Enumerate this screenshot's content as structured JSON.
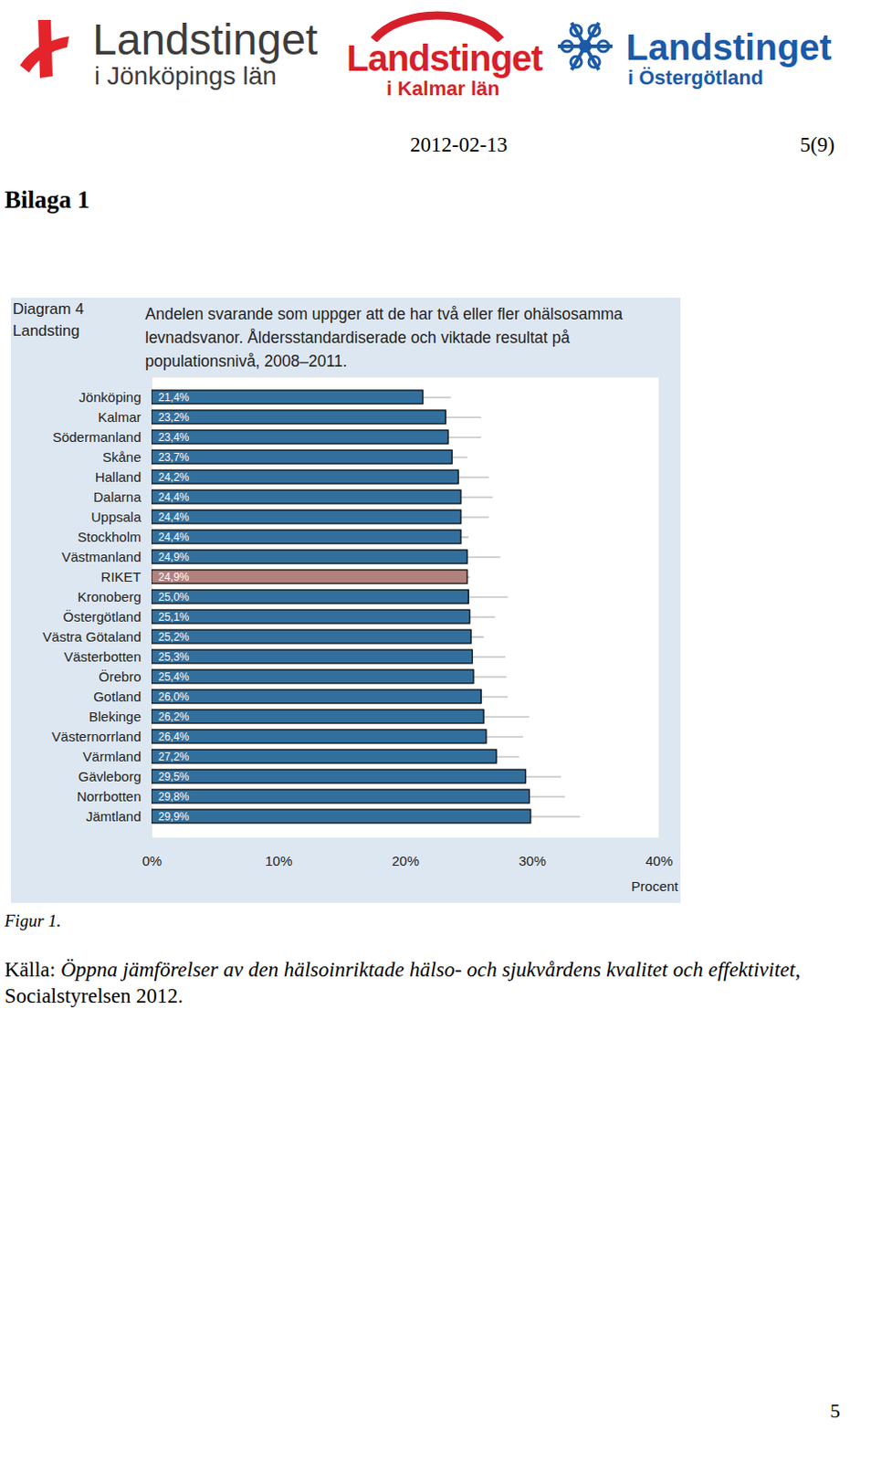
{
  "header": {
    "logos": [
      {
        "name": "Landstinget",
        "sub": "i Jönköpings län"
      },
      {
        "name": "Landstinget",
        "sub": "i Kalmar län"
      },
      {
        "name": "Landstinget",
        "sub": "i Östergötland"
      }
    ],
    "date": "2012-02-13",
    "page_ref": "5(9)"
  },
  "heading": "Bilaga 1",
  "chart_data": {
    "type": "bar",
    "orientation": "horizontal",
    "label": "Diagram 4",
    "ylabel": "Landsting",
    "title": "Andelen svarande som uppger att de har två eller fler ohälsosamma levnadsvanor. Åldersstandardiserade och viktade resultat på populationsnivå, 2008–2011.",
    "xlabel": "Procent",
    "categories": [
      "Jönköping",
      "Kalmar",
      "Södermanland",
      "Skåne",
      "Halland",
      "Dalarna",
      "Uppsala",
      "Stockholm",
      "Västmanland",
      "RIKET",
      "Kronoberg",
      "Östergötland",
      "Västra Götaland",
      "Västerbotten",
      "Örebro",
      "Gotland",
      "Blekinge",
      "Västernorrland",
      "Värmland",
      "Gävleborg",
      "Norrbotten",
      "Jämtland"
    ],
    "values": [
      21.4,
      23.2,
      23.4,
      23.7,
      24.2,
      24.4,
      24.4,
      24.4,
      24.9,
      24.9,
      25.0,
      25.1,
      25.2,
      25.3,
      25.4,
      26.0,
      26.2,
      26.4,
      27.2,
      29.5,
      29.8,
      29.9
    ],
    "value_labels": [
      "21,4%",
      "23,2%",
      "23,4%",
      "23,7%",
      "24,2%",
      "24,4%",
      "24,4%",
      "24,4%",
      "24,9%",
      "24,9%",
      "25,0%",
      "25,1%",
      "25,2%",
      "25,3%",
      "25,4%",
      "26,0%",
      "26,2%",
      "26,4%",
      "27,2%",
      "29,5%",
      "29,8%",
      "29,9%"
    ],
    "error_low": [
      20.0,
      20.4,
      20.8,
      22.5,
      21.8,
      21.9,
      22.2,
      23.8,
      22.3,
      24.7,
      21.9,
      23.1,
      24.2,
      22.7,
      22.8,
      23.9,
      22.6,
      23.5,
      25.4,
      26.7,
      27.0,
      26.0
    ],
    "error_high": [
      23.6,
      26.0,
      26.0,
      24.9,
      26.6,
      26.9,
      26.6,
      25.0,
      27.5,
      25.1,
      28.1,
      27.1,
      26.2,
      27.9,
      28.0,
      28.1,
      29.8,
      29.3,
      29.0,
      32.3,
      32.6,
      33.8
    ],
    "colors": [
      "#336f9c",
      "#336f9c",
      "#336f9c",
      "#336f9c",
      "#336f9c",
      "#336f9c",
      "#336f9c",
      "#336f9c",
      "#336f9c",
      "#b3817c",
      "#336f9c",
      "#336f9c",
      "#336f9c",
      "#336f9c",
      "#336f9c",
      "#336f9c",
      "#336f9c",
      "#336f9c",
      "#336f9c",
      "#336f9c",
      "#336f9c",
      "#336f9c"
    ],
    "xlim": [
      0,
      40
    ],
    "xticks": [
      {
        "value": 0,
        "label": "0%"
      },
      {
        "value": 10,
        "label": "10%"
      },
      {
        "value": 20,
        "label": "20%"
      },
      {
        "value": 30,
        "label": "30%"
      },
      {
        "value": 40,
        "label": "40%"
      }
    ],
    "grid": false,
    "data_labels": true
  },
  "caption": "Figur 1.",
  "source": {
    "prefix": "Källa: ",
    "title": "Öppna jämförelser av den hälsoinriktade hälso- och sjukvårdens kvalitet och effektivitet",
    "suffix": ", Socialstyrelsen 2012."
  },
  "page_number": "5"
}
